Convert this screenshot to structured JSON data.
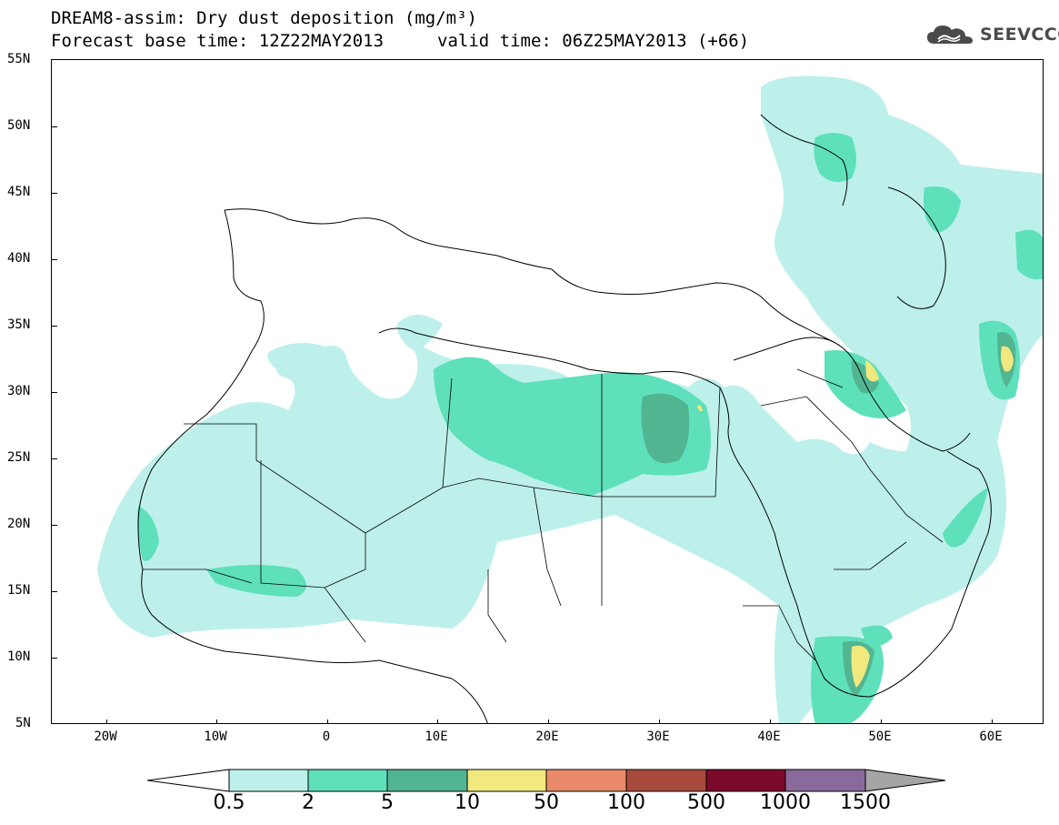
{
  "title": {
    "line1": "DREAM8-assim: Dry dust deposition (mg/m³)",
    "line2": "Forecast base time: 12Z22MAY2013",
    "valid": "valid time: 06Z25MAY2013 (+66)"
  },
  "logo": {
    "text": "SEEVCCC",
    "icon": "cloud-icon"
  },
  "axes": {
    "lat_labels": [
      "55N",
      "50N",
      "45N",
      "40N",
      "35N",
      "30N",
      "25N",
      "20N",
      "15N",
      "10N",
      "5N"
    ],
    "lon_labels": [
      "20W",
      "10W",
      "0",
      "10E",
      "20E",
      "30E",
      "40E",
      "50E",
      "60E"
    ],
    "lat_range": [
      5,
      55
    ],
    "lon_range": [
      -25,
      65
    ]
  },
  "legend": {
    "labels": [
      "0.5",
      "2",
      "5",
      "10",
      "50",
      "100",
      "500",
      "1000",
      "1500"
    ],
    "colors": [
      "#ffffff",
      "#bdf0ea",
      "#5ee0bb",
      "#52b591",
      "#f1e97d",
      "#e98a6a",
      "#a84a3e",
      "#7c0a2a",
      "#8a6a9a",
      "#a5a5a5"
    ]
  }
}
